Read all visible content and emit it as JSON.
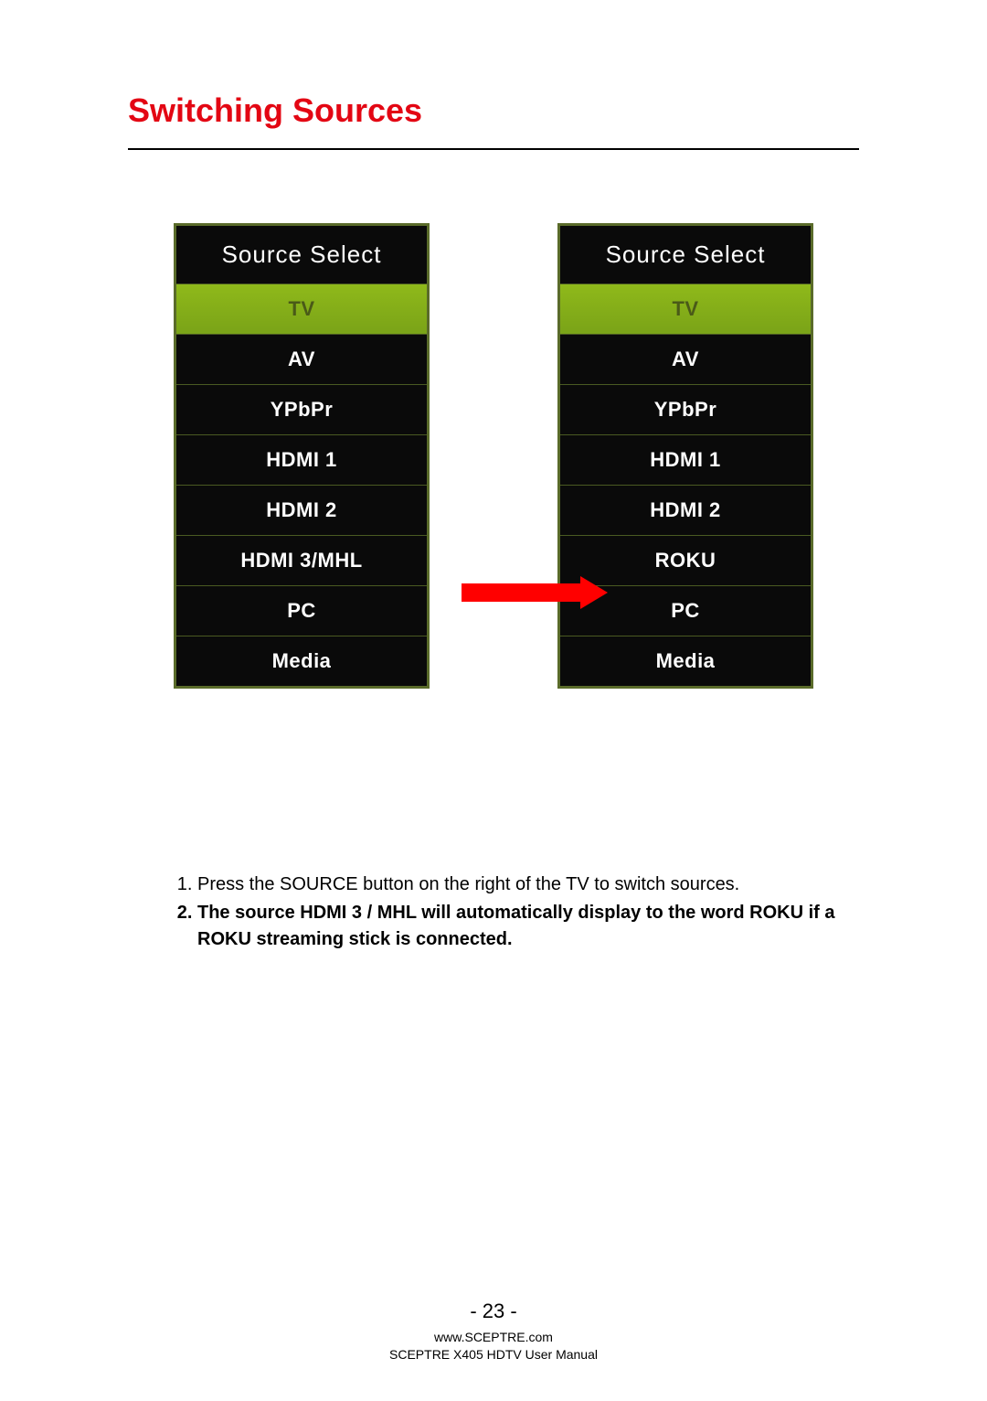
{
  "title": "Switching Sources",
  "menu_left": {
    "header": "Source Select",
    "items": [
      {
        "label": "TV",
        "selected": true
      },
      {
        "label": "AV",
        "selected": false
      },
      {
        "label": "YPbPr",
        "selected": false
      },
      {
        "label": "HDMI 1",
        "selected": false
      },
      {
        "label": "HDMI 2",
        "selected": false
      },
      {
        "label": "HDMI 3/MHL",
        "selected": false
      },
      {
        "label": "PC",
        "selected": false
      },
      {
        "label": "Media",
        "selected": false
      }
    ]
  },
  "menu_right": {
    "header": "Source Select",
    "items": [
      {
        "label": "TV",
        "selected": true
      },
      {
        "label": "AV",
        "selected": false
      },
      {
        "label": "YPbPr",
        "selected": false
      },
      {
        "label": "HDMI 1",
        "selected": false
      },
      {
        "label": "HDMI 2",
        "selected": false
      },
      {
        "label": "ROKU",
        "selected": false
      },
      {
        "label": "PC",
        "selected": false
      },
      {
        "label": "Media",
        "selected": false
      }
    ]
  },
  "instructions": {
    "item1": "Press the SOURCE button on the right of the TV to switch sources.",
    "item2": "The source HDMI 3 / MHL will automatically display to the word ROKU if a ROKU streaming stick is connected."
  },
  "footer": {
    "page_number": "- 23 -",
    "website": "www.SCEPTRE.com",
    "manual": "SCEPTRE X405 HDTV User Manual"
  },
  "colors": {
    "title_red": "#e30613",
    "menu_bg": "#0a0a0a",
    "menu_border": "#5a6b2a",
    "selected_bg": "#8fb91a",
    "arrow_red": "#ff0000",
    "text_white": "#ffffff",
    "text_black": "#000000"
  }
}
